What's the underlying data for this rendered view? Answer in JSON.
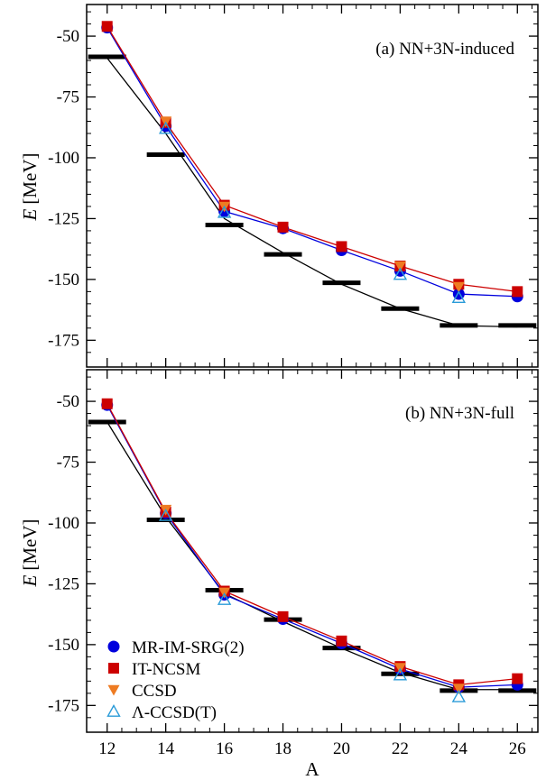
{
  "chart_data": [
    {
      "type": "line",
      "panel_label": "(a) NN+3N-induced",
      "ylabel_italic": "E",
      "ylabel_unit": "[MeV]",
      "xlabel": "",
      "xlim": [
        11.3,
        26.7
      ],
      "ylim": [
        -186,
        -37
      ],
      "xticks": [
        12,
        14,
        16,
        18,
        20,
        22,
        24,
        26
      ],
      "yticks": [
        -50,
        -75,
        -100,
        -125,
        -150,
        -175
      ],
      "experiment": {
        "color": "#000000",
        "x": [
          12,
          14,
          16,
          18,
          20,
          22,
          24,
          26
        ],
        "y": [
          -58.5,
          -98.7,
          -127.6,
          -139.7,
          -151.4,
          -162.0,
          -168.9,
          -168.9
        ]
      },
      "series": [
        {
          "key": "mr",
          "x": [
            12,
            14,
            16,
            18,
            20,
            22,
            24,
            26
          ],
          "y": [
            -46.5,
            -87.0,
            -122.0,
            -129.0,
            -138.0,
            -146.5,
            -156.0,
            -157.0
          ],
          "color": "#0000dd",
          "marker": "circle",
          "line": true
        },
        {
          "key": "it",
          "x": [
            12,
            14,
            16,
            18,
            20,
            22,
            24,
            26
          ],
          "y": [
            -46.0,
            -85.5,
            -119.5,
            -128.5,
            -136.5,
            -144.5,
            -152.0,
            -155.0
          ],
          "color": "#cc0000",
          "marker": "square",
          "line": true
        },
        {
          "key": "ccsd",
          "x": [
            14,
            16,
            22,
            24
          ],
          "y": [
            -85.0,
            -120.0,
            -144.5,
            -153.0
          ],
          "color": "#ee7b22",
          "marker": "triangle-down",
          "line": false
        },
        {
          "key": "lccsd",
          "x": [
            14,
            16,
            22,
            24
          ],
          "y": [
            -88.0,
            -122.5,
            -148.0,
            -157.5
          ],
          "color": "#2a9bd8",
          "marker": "triangle-up",
          "line": false
        }
      ],
      "curve": {
        "color": "#000000",
        "x": [
          12,
          14,
          16,
          18,
          20,
          22,
          24,
          26
        ],
        "y": [
          -59.0,
          -90.0,
          -125.0,
          -139.0,
          -152.0,
          -162.0,
          -169.0,
          -169.5
        ]
      }
    },
    {
      "type": "line",
      "panel_label": "(b) NN+3N-full",
      "ylabel_italic": "E",
      "ylabel_unit": "[MeV]",
      "xlabel": "A",
      "xlim": [
        11.3,
        26.7
      ],
      "ylim": [
        -186,
        -37
      ],
      "xticks": [
        12,
        14,
        16,
        18,
        20,
        22,
        24,
        26
      ],
      "yticks": [
        -50,
        -75,
        -100,
        -125,
        -150,
        -175
      ],
      "experiment": {
        "color": "#000000",
        "x": [
          12,
          14,
          16,
          18,
          20,
          22,
          24,
          26
        ],
        "y": [
          -58.5,
          -98.7,
          -127.6,
          -139.7,
          -151.4,
          -162.0,
          -168.9,
          -168.9
        ]
      },
      "series": [
        {
          "key": "mr",
          "x": [
            12,
            14,
            16,
            18,
            20,
            22,
            24,
            26
          ],
          "y": [
            -51.5,
            -96.0,
            -129.5,
            -139.5,
            -149.5,
            -160.0,
            -167.5,
            -166.5
          ],
          "color": "#0000dd",
          "marker": "circle",
          "line": true
        },
        {
          "key": "it",
          "x": [
            12,
            14,
            16,
            18,
            20,
            22,
            24,
            26
          ],
          "y": [
            -51.0,
            -95.5,
            -128.0,
            -138.5,
            -148.5,
            -159.0,
            -166.5,
            -164.0
          ],
          "color": "#cc0000",
          "marker": "square",
          "line": true
        },
        {
          "key": "ccsd",
          "x": [
            14,
            16,
            22,
            24
          ],
          "y": [
            -94.5,
            -128.5,
            -159.5,
            -168.0
          ],
          "color": "#ee7b22",
          "marker": "triangle-down",
          "line": false
        },
        {
          "key": "lccsd",
          "x": [
            14,
            16,
            22,
            24
          ],
          "y": [
            -97.0,
            -131.5,
            -162.5,
            -171.5
          ],
          "color": "#2a9bd8",
          "marker": "triangle-up",
          "line": false
        }
      ],
      "curve": {
        "color": "#000000",
        "x": [
          12,
          14,
          16,
          18,
          20,
          22,
          24,
          26
        ],
        "y": [
          -58.5,
          -97.5,
          -129.0,
          -140.5,
          -151.5,
          -161.5,
          -168.5,
          -168.5
        ]
      }
    }
  ],
  "legend": {
    "placement": "bottom-left of panel (b)",
    "entries": [
      {
        "key": "mr",
        "label": "MR-IM-SRG(2)",
        "color": "#0000dd",
        "marker": "circle"
      },
      {
        "key": "it",
        "label": "IT-NCSM",
        "color": "#cc0000",
        "marker": "square"
      },
      {
        "key": "ccsd",
        "label": "CCSD",
        "color": "#ee7b22",
        "marker": "triangle-down"
      },
      {
        "key": "lccsd",
        "label": "Λ-CCSD(T)",
        "color": "#2a9bd8",
        "marker": "triangle-up"
      }
    ]
  }
}
